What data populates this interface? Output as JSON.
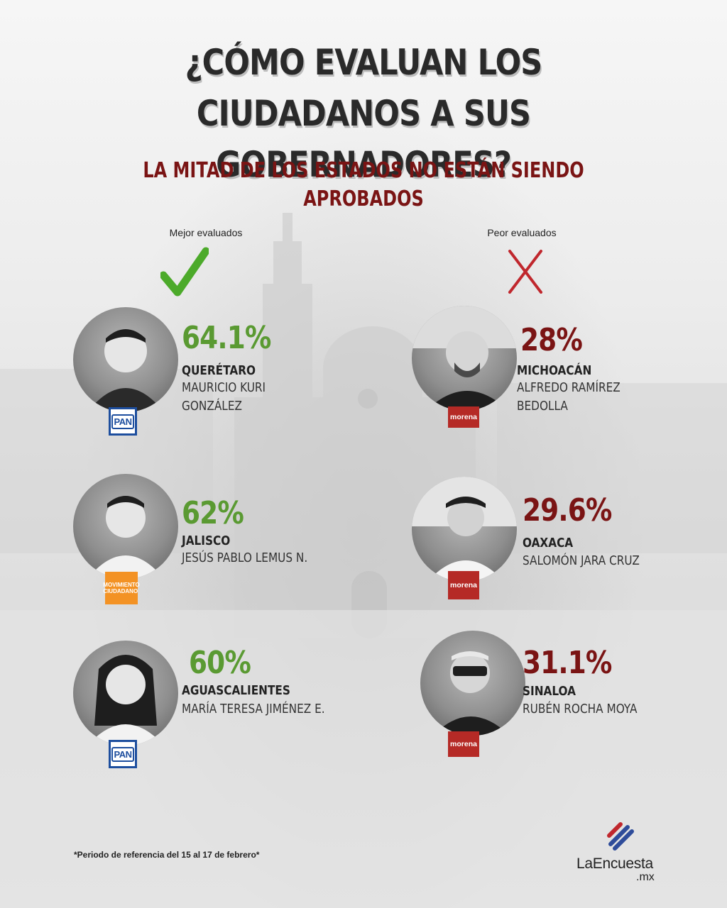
{
  "title": "¿CÓMO EVALUAN LOS CIUDADANOS A SUS GOBERNADORES?",
  "subtitle": "LA MITAD DE LOS ESTADOS NO ESTÁN SIENDO APROBADOS",
  "best": {
    "label": "Mejor evaluados",
    "icon": "checkmark-icon",
    "color": "#5a9a32",
    "items": [
      {
        "percent": "64.1%",
        "state": "QUERÉTARO",
        "name": "MAURICIO KURI GONZÁLEZ",
        "party": "PAN"
      },
      {
        "percent": "62%",
        "state": "JALISCO",
        "name": "JESÚS PABLO LEMUS N.",
        "party": "MOVIMIENTO CIUDADANO"
      },
      {
        "percent": "60%",
        "state": "AGUASCALIENTES",
        "name": "MARÍA TERESA JIMÉNEZ E.",
        "party": "PAN"
      }
    ]
  },
  "worst": {
    "label": "Peor evaluados",
    "icon": "x-mark-icon",
    "color": "#7a1414",
    "items": [
      {
        "percent": "28%",
        "state": "MICHOACÁN",
        "name": "ALFREDO RAMÍREZ BEDOLLA",
        "party": "morena"
      },
      {
        "percent": "29.6%",
        "state": "OAXACA",
        "name": "SALOMÓN JARA CRUZ",
        "party": "morena"
      },
      {
        "percent": "31.1%",
        "state": "SINALOA",
        "name": "RUBÉN ROCHA MOYA",
        "party": "morena"
      }
    ]
  },
  "footnote": "*Periodo de referencia del 15 al 17 de febrero*",
  "brand": {
    "name": "LaEncuesta",
    "suffix": ".mx",
    "colors": [
      "#c0272d",
      "#2e4c9a"
    ]
  }
}
